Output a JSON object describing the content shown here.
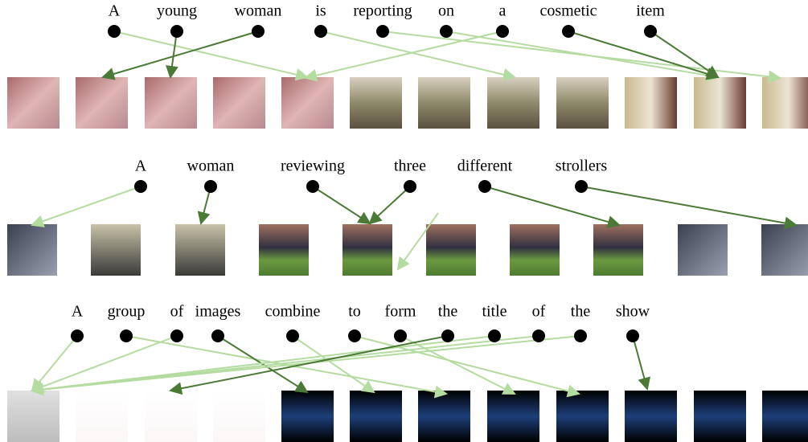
{
  "rows": [
    {
      "words": [
        "A",
        "young",
        "woman",
        "is",
        "reporting",
        "on",
        "a",
        "cosmetic",
        "item"
      ]
    },
    {
      "words": [
        "A",
        "woman",
        "reviewing",
        "three",
        "different",
        "strollers"
      ]
    },
    {
      "words": [
        "A",
        "group",
        "of",
        "images",
        "combine",
        "to",
        "form",
        "the",
        "title",
        "of",
        "the",
        "show"
      ]
    }
  ]
}
